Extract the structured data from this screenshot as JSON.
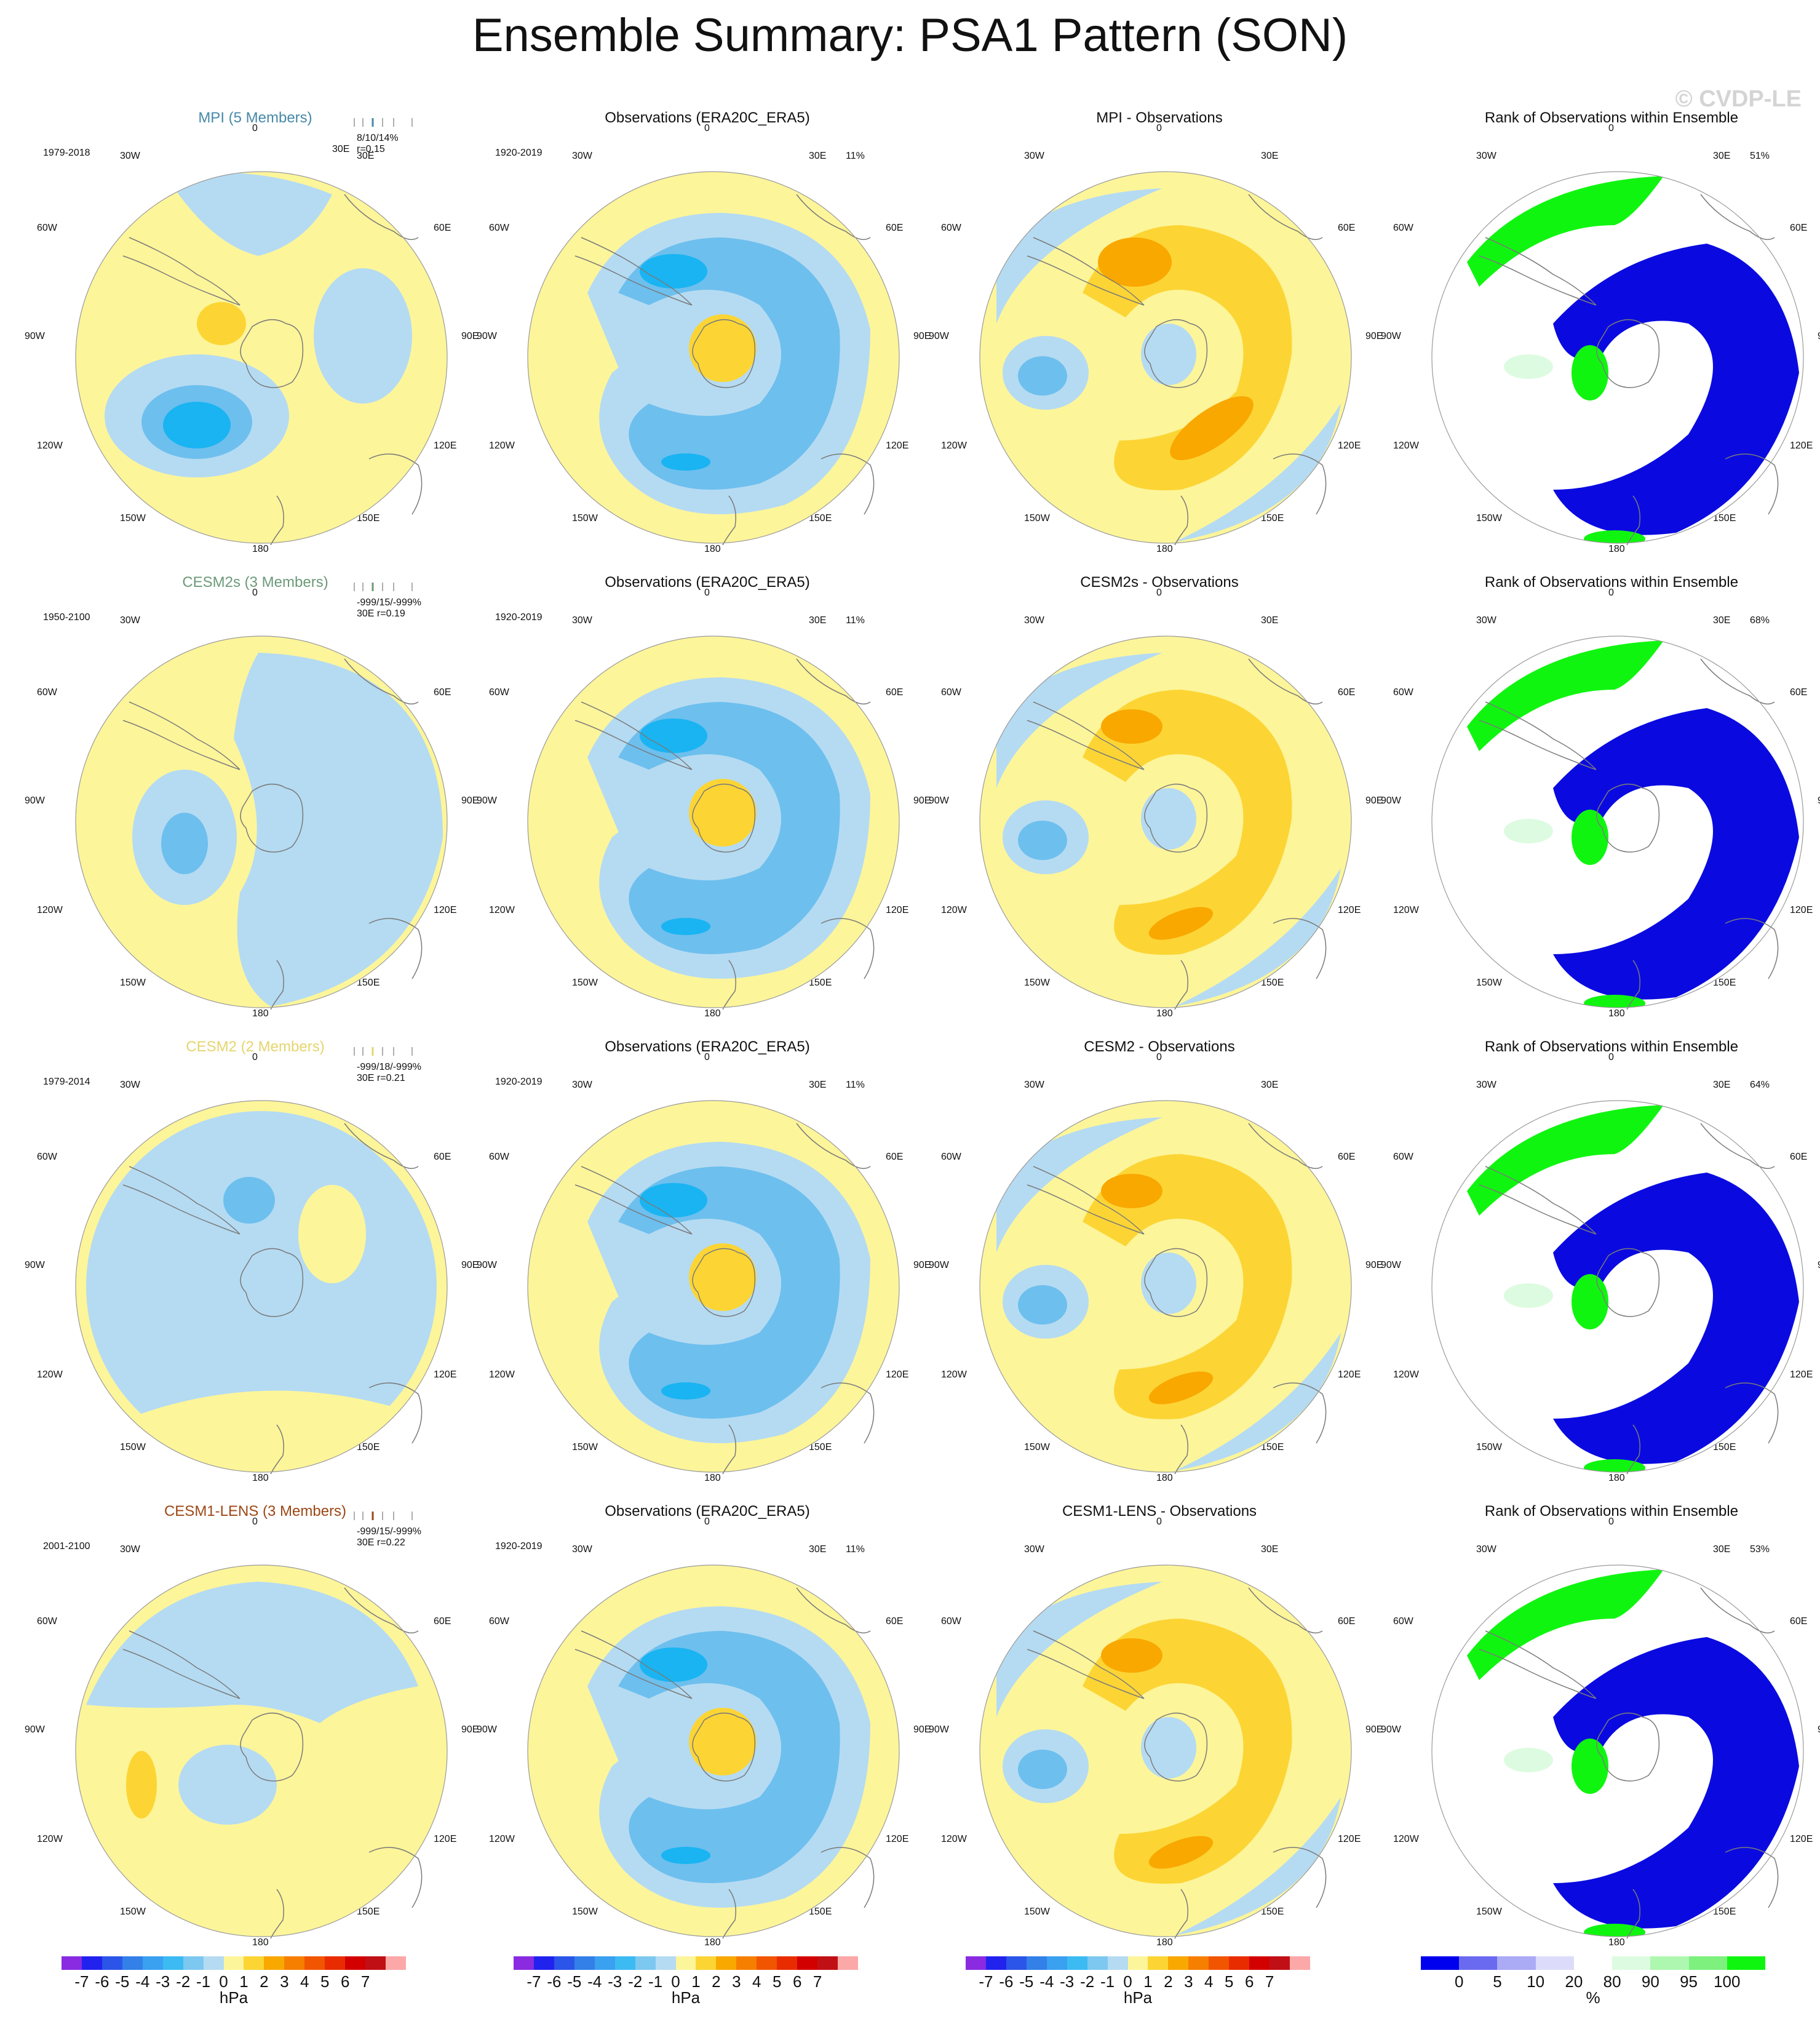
{
  "title": "Ensemble Summary: PSA1 Pattern (SON)",
  "watermark": "© CVDP-LE",
  "lon_labels": {
    "top": "0",
    "n30e": "30E",
    "n60e": "60E",
    "e90": "90E",
    "s120e": "120E",
    "s150e": "150E",
    "bottom": "180",
    "s150w": "150W",
    "s120w": "120W",
    "w90": "90W",
    "n60w": "60W",
    "n30w": "30W"
  },
  "colors": {
    "ocean_yellow": "#fdf59a",
    "light_blue": "#b5dbf2",
    "mid_blue": "#6dbfee",
    "deep_blue": "#19b4f1",
    "light_orange": "#fcd535",
    "orange": "#f9a800",
    "rank_green": "#10f510",
    "rank_pale_green": "#ddfbe0",
    "rank_blue": "#0a0ae0",
    "coast": "#7a7a7a"
  },
  "rows": [
    {
      "model": {
        "title": "MPI (5 Members)",
        "title_color": "#4689a8",
        "period": "1979-2018",
        "stats": "8/10/14%",
        "corr": "r=0.15",
        "corr_prefix": "30E"
      },
      "obs": {
        "title": "Observations (ERA20C_ERA5)",
        "period": "1920-2019",
        "pct": "11%"
      },
      "diff": {
        "title": "MPI - Observations"
      },
      "rank": {
        "title": "Rank of Observations within Ensemble",
        "pct": "51%"
      }
    },
    {
      "model": {
        "title": "CESM2s (3 Members)",
        "title_color": "#6c9a79",
        "period": "1950-2100",
        "stats": "-999/15/-999%",
        "corr": "30E r=0.19",
        "corr_prefix": ""
      },
      "obs": {
        "title": "Observations (ERA20C_ERA5)",
        "period": "1920-2019",
        "pct": "11%"
      },
      "diff": {
        "title": "CESM2s - Observations"
      },
      "rank": {
        "title": "Rank of Observations within Ensemble",
        "pct": "68%"
      }
    },
    {
      "model": {
        "title": "CESM2 (2 Members)",
        "title_color": "#e5d56f",
        "period": "1979-2014",
        "stats": "-999/18/-999%",
        "corr": "30E r=0.21",
        "corr_prefix": ""
      },
      "obs": {
        "title": "Observations (ERA20C_ERA5)",
        "period": "1920-2019",
        "pct": "11%"
      },
      "diff": {
        "title": "CESM2 - Observations"
      },
      "rank": {
        "title": "Rank of Observations within Ensemble",
        "pct": "64%"
      }
    },
    {
      "model": {
        "title": "CESM1-LENS (3 Members)",
        "title_color": "#9c4715",
        "period": "2001-2100",
        "stats": "-999/15/-999%",
        "corr": "30E r=0.22",
        "corr_prefix": ""
      },
      "obs": {
        "title": "Observations (ERA20C_ERA5)",
        "period": "1920-2019",
        "pct": "11%"
      },
      "diff": {
        "title": "CESM1-LENS - Observations"
      },
      "rank": {
        "title": "Rank of Observations within Ensemble",
        "pct": "53%"
      }
    }
  ],
  "colorbar_hpa": {
    "ticks": [
      "-7",
      "-6",
      "-5",
      "-4",
      "-3",
      "-2",
      "-1",
      "0",
      "1",
      "2",
      "3",
      "4",
      "5",
      "6",
      "7"
    ],
    "unit": "hPa",
    "colors": [
      "#8a2be2",
      "#2222ee",
      "#2a55e8",
      "#3380e8",
      "#3aa0f0",
      "#3cbbf2",
      "#7cc8f0",
      "#b5dbf2",
      "#fdf59a",
      "#fcd535",
      "#f9a800",
      "#f67f00",
      "#f25500",
      "#e82c00",
      "#d30000",
      "#c01015",
      "#fca8a8"
    ]
  },
  "colorbar_rank": {
    "ticks": [
      "0",
      "5",
      "10",
      "20",
      "80",
      "90",
      "95",
      "100"
    ],
    "unit": "%",
    "colors": [
      "#0000ee",
      "#6a6af0",
      "#aaaaf5",
      "#dcdcfa",
      "#ffffff",
      "#ddfbe0",
      "#aef7b0",
      "#7df07d",
      "#10f510"
    ]
  }
}
